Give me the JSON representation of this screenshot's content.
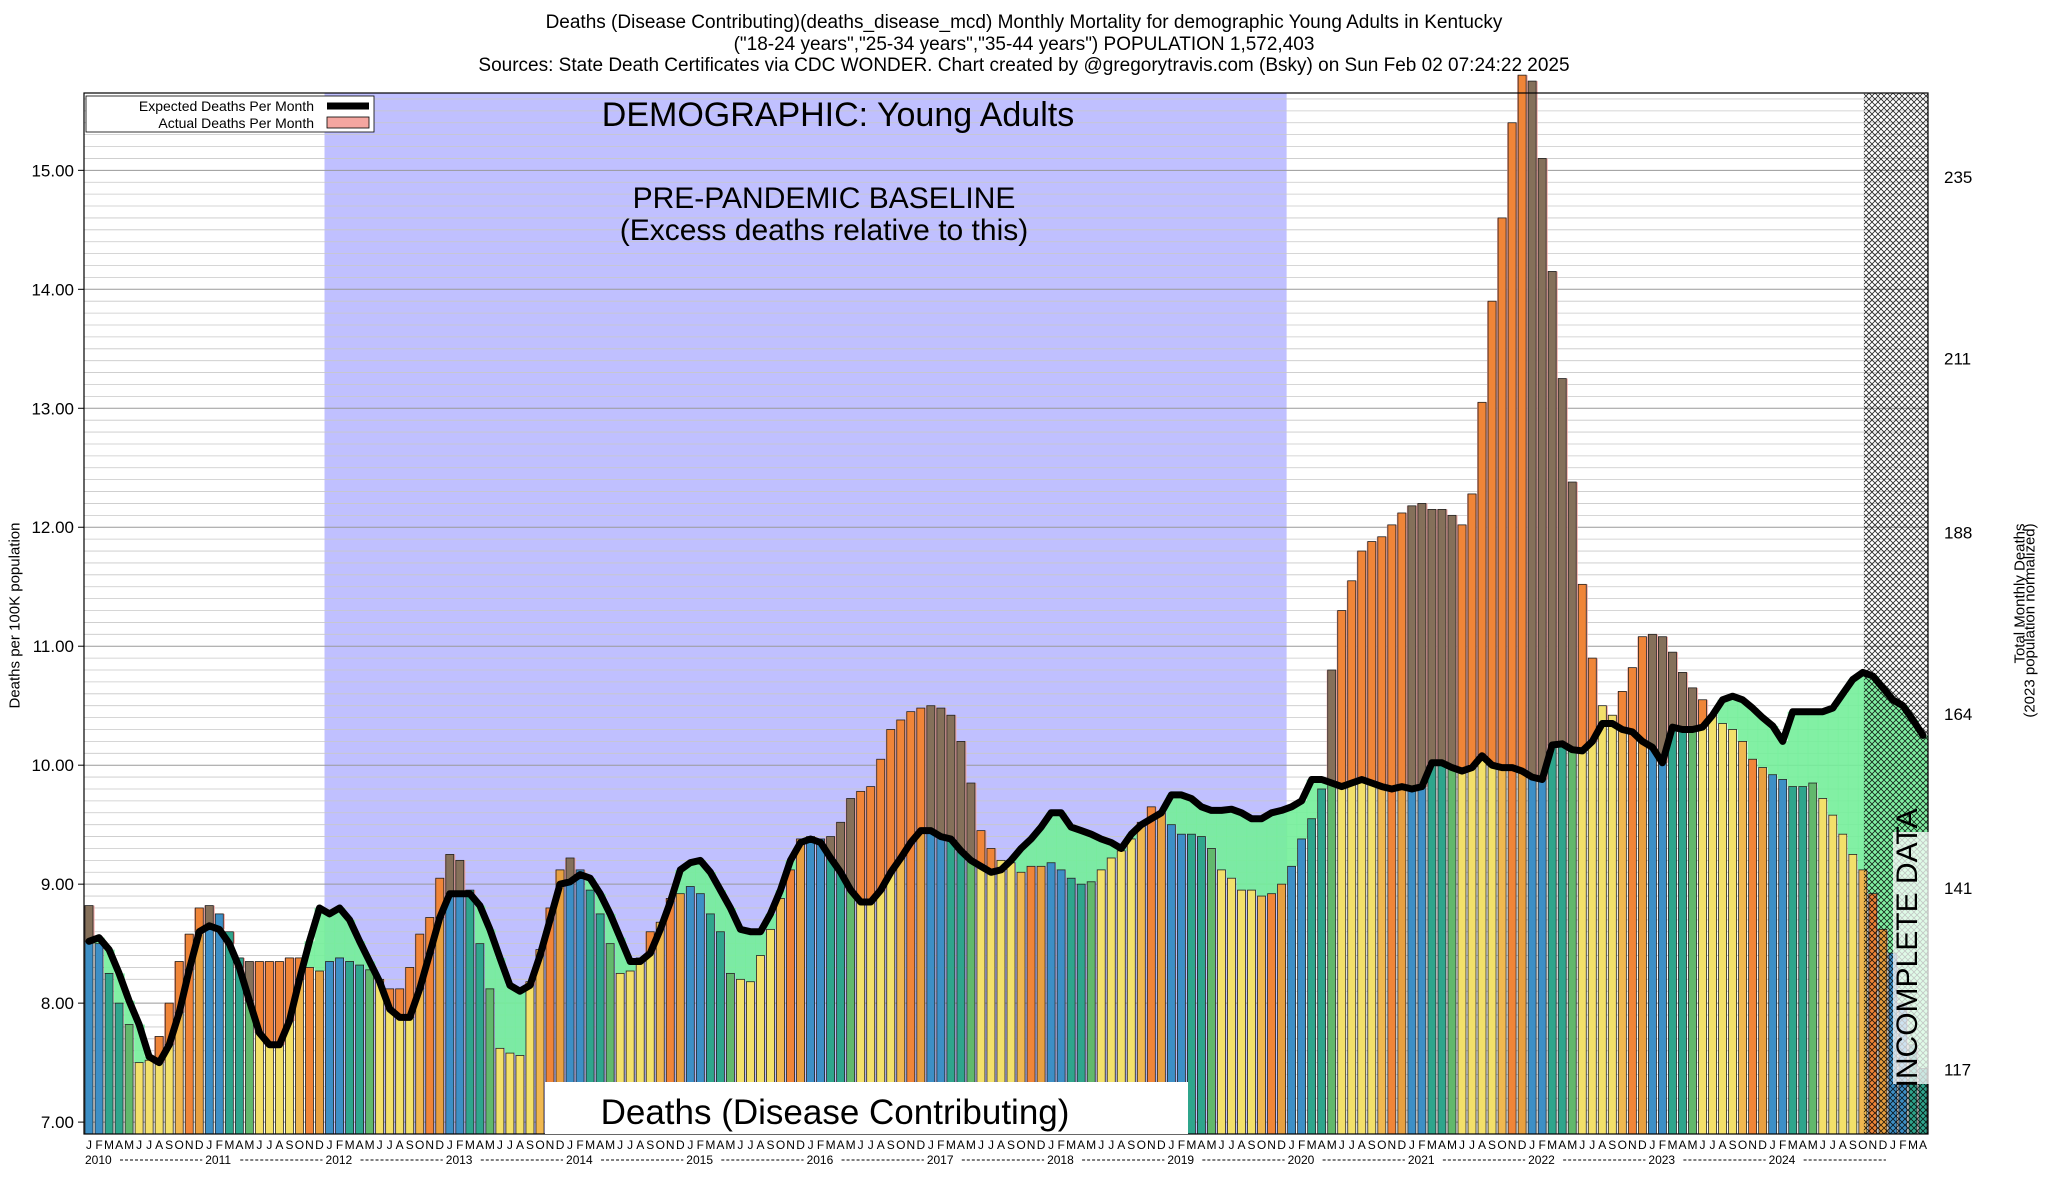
{
  "header": {
    "title_line1": "Deaths (Disease Contributing)(deaths_disease_mcd) Monthly Mortality for demographic Young Adults in Kentucky",
    "title_line2": "(\"18-24 years\",\"25-34 years\",\"35-44 years\") POPULATION 1,572,403",
    "title_line3": "Sources: State Death Certificates via CDC WONDER.            Chart created by @gregorytravis.com (Bsky) on Sun Feb 02 07:24:22 2025"
  },
  "chart_data": {
    "type": "bar",
    "title": "Deaths (Disease Contributing)(deaths_disease_mcd) Monthly Mortality for demographic Young Adults in Kentucky",
    "ylabel": "Deaths per 100K population",
    "ylabel_right": "Total Monthly Deaths",
    "ylabel_right_sub": "(2023 population normalized)",
    "ylim": [
      6.9,
      15.65
    ],
    "yticks": [
      "7.00",
      "8.00",
      "9.00",
      "10.00",
      "11.00",
      "12.00",
      "13.00",
      "14.00",
      "15.00"
    ],
    "yticks_right": [
      "117",
      "141",
      "164",
      "188",
      "211",
      "235"
    ],
    "years": [
      "2010",
      "2011",
      "2012",
      "2013",
      "2014",
      "2015",
      "2016",
      "2017",
      "2018",
      "2019",
      "2020",
      "2021",
      "2022",
      "2023",
      "2024"
    ],
    "month_letters": [
      "J",
      "F",
      "M",
      "A",
      "M",
      "J",
      "J",
      "A",
      "S",
      "O",
      "N",
      "D"
    ],
    "legend": {
      "position": "top-left",
      "expected": "Expected Deaths Per Month",
      "actual": "Actual Deaths Per Month"
    },
    "annotations": {
      "demographic": "DEMOGRAPHIC: Young Adults",
      "baseline_line1": "PRE-PANDEMIC BASELINE",
      "baseline_line2": "(Excess deaths relative to this)",
      "footer_label": "Deaths (Disease Contributing)",
      "incomplete": "INCOMPLETE DATA"
    },
    "baseline_region": [
      "2012-01",
      "2019-12"
    ],
    "incomplete_region": [
      "2024-07",
      "2024-12"
    ],
    "colors": {
      "baseline_fill": "#c0c0ff",
      "excess_fill": "#f4a6a0",
      "deficit_fill": "#74ee9a",
      "expected_line": "#000000",
      "bar_blue": "#3d8fc6",
      "bar_teal": "#2fa58c",
      "bar_green": "#62b86c",
      "bar_yellow": "#f3e06a",
      "bar_orange": "#f08538",
      "bar_brown": "#85705a"
    },
    "series": [
      {
        "name": "Actual Deaths Per Month",
        "values": [
          8.82,
          8.5,
          8.25,
          8.0,
          7.82,
          7.5,
          7.52,
          7.72,
          8.0,
          8.35,
          8.58,
          8.8,
          8.82,
          8.75,
          8.6,
          8.38,
          8.35,
          8.35,
          8.35,
          8.35,
          8.38,
          8.38,
          8.3,
          8.27,
          8.35,
          8.38,
          8.35,
          8.32,
          8.28,
          8.2,
          8.12,
          8.12,
          8.3,
          8.58,
          8.72,
          9.05,
          9.25,
          9.2,
          8.95,
          8.5,
          8.12,
          7.62,
          7.58,
          7.56,
          8.18,
          8.45,
          8.8,
          9.12,
          9.22,
          9.12,
          8.95,
          8.75,
          8.5,
          8.25,
          8.27,
          8.38,
          8.6,
          8.68,
          8.88,
          8.92,
          8.98,
          8.92,
          8.75,
          8.6,
          8.25,
          8.2,
          8.18,
          8.4,
          8.62,
          8.88,
          9.12,
          9.38,
          9.4,
          9.38,
          9.4,
          9.52,
          9.72,
          9.78,
          9.82,
          10.05,
          10.3,
          10.38,
          10.45,
          10.48,
          10.5,
          10.48,
          10.42,
          10.2,
          9.85,
          9.45,
          9.3,
          9.2,
          9.18,
          9.1,
          9.15,
          9.15,
          9.18,
          9.12,
          9.05,
          9.0,
          9.02,
          9.12,
          9.22,
          9.28,
          9.38,
          9.52,
          9.65,
          9.6,
          9.5,
          9.42,
          9.42,
          9.4,
          9.3,
          9.12,
          9.05,
          8.95,
          8.95,
          8.9,
          8.92,
          9.0,
          9.15,
          9.38,
          9.55,
          9.8,
          10.8,
          11.3,
          11.55,
          11.8,
          11.88,
          11.92,
          12.02,
          12.12,
          12.18,
          12.2,
          12.15,
          12.15,
          12.1,
          12.02,
          12.28,
          13.05,
          13.9,
          14.6,
          15.4,
          15.8,
          15.75,
          15.1,
          14.15,
          13.25,
          12.38,
          11.52,
          10.9,
          10.5,
          10.42,
          10.62,
          10.82,
          11.08,
          11.1,
          11.08,
          10.95,
          10.78,
          10.65,
          10.55,
          10.42,
          10.35,
          10.3,
          10.2,
          10.05,
          9.98,
          9.92,
          9.88,
          9.82,
          9.82,
          9.85,
          9.72,
          9.58,
          9.42,
          9.25,
          9.12,
          8.92,
          8.62,
          8.42,
          8.0,
          7.65,
          7.45
        ]
      },
      {
        "name": "Expected Deaths Per Month",
        "values": [
          8.52,
          8.55,
          8.45,
          8.25,
          8.02,
          7.82,
          7.55,
          7.5,
          7.65,
          7.92,
          8.28,
          8.6,
          8.65,
          8.62,
          8.5,
          8.3,
          8.02,
          7.75,
          7.65,
          7.65,
          7.85,
          8.2,
          8.52,
          8.8,
          8.75,
          8.8,
          8.7,
          8.52,
          8.35,
          8.18,
          7.95,
          7.88,
          7.88,
          8.12,
          8.42,
          8.72,
          8.92,
          8.92,
          8.92,
          8.82,
          8.62,
          8.38,
          8.15,
          8.1,
          8.15,
          8.4,
          8.7,
          9.0,
          9.02,
          9.08,
          9.05,
          8.92,
          8.75,
          8.55,
          8.35,
          8.35,
          8.42,
          8.62,
          8.85,
          9.12,
          9.18,
          9.2,
          9.1,
          8.95,
          8.8,
          8.62,
          8.6,
          8.6,
          8.75,
          8.95,
          9.2,
          9.35,
          9.38,
          9.35,
          9.22,
          9.1,
          8.95,
          8.85,
          8.85,
          8.95,
          9.1,
          9.22,
          9.35,
          9.45,
          9.45,
          9.4,
          9.38,
          9.28,
          9.2,
          9.15,
          9.1,
          9.12,
          9.2,
          9.3,
          9.38,
          9.48,
          9.6,
          9.6,
          9.48,
          9.45,
          9.42,
          9.38,
          9.35,
          9.3,
          9.42,
          9.5,
          9.55,
          9.6,
          9.75,
          9.75,
          9.72,
          9.65,
          9.62,
          9.62,
          9.63,
          9.6,
          9.55,
          9.55,
          9.6,
          9.62,
          9.65,
          9.7,
          9.88,
          9.88,
          9.85,
          9.82,
          9.85,
          9.88,
          9.85,
          9.82,
          9.8,
          9.82,
          9.8,
          9.82,
          10.02,
          10.02,
          9.98,
          9.95,
          9.98,
          10.08,
          10.0,
          9.98,
          9.98,
          9.95,
          9.9,
          9.88,
          10.17,
          10.18,
          10.13,
          10.12,
          10.2,
          10.35,
          10.35,
          10.3,
          10.28,
          10.2,
          10.15,
          10.02,
          10.32,
          10.3,
          10.3,
          10.32,
          10.42,
          10.55,
          10.58,
          10.55,
          10.48,
          10.4,
          10.33,
          10.2,
          10.45,
          10.45,
          10.45,
          10.45,
          10.48,
          10.6,
          10.72,
          10.78,
          10.75,
          10.65,
          10.55,
          10.5,
          10.38,
          10.25
        ]
      }
    ]
  }
}
